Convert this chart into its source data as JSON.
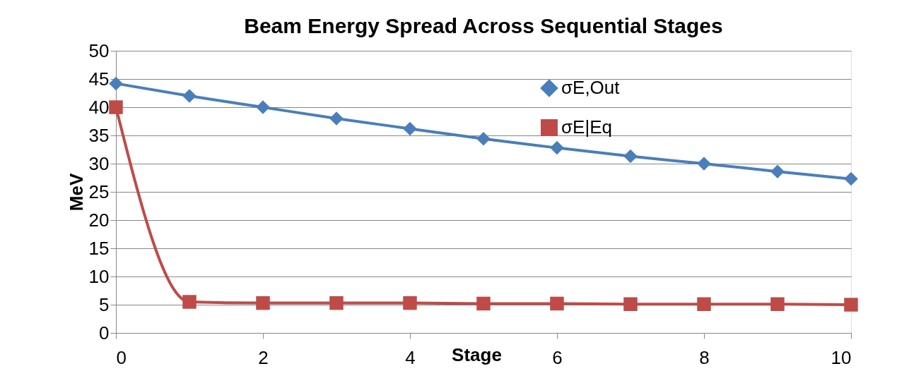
{
  "chart_data": {
    "type": "line",
    "title": "Beam Energy Spread Across Sequential Stages",
    "xlabel": "Stage",
    "ylabel": "MeV",
    "x": [
      0,
      1,
      2,
      3,
      4,
      5,
      6,
      7,
      8,
      9,
      10
    ],
    "series": [
      {
        "name": "σE,Out",
        "color": "#4a7ebb",
        "marker": "diamond",
        "values": [
          44.2,
          42,
          40,
          38,
          36.2,
          34.4,
          32.8,
          31.3,
          30,
          28.6,
          27.3
        ]
      },
      {
        "name": "σE|Eq",
        "color": "#be4b48",
        "marker": "square",
        "values": [
          40,
          5.5,
          5.3,
          5.3,
          5.3,
          5.2,
          5.2,
          5.1,
          5.1,
          5.1,
          5.0
        ]
      }
    ],
    "xlim": [
      0,
      10
    ],
    "xticks": [
      0,
      2,
      4,
      6,
      8,
      10
    ],
    "ylim": [
      0,
      50
    ],
    "yticks": [
      0,
      5,
      10,
      15,
      20,
      25,
      30,
      35,
      40,
      45,
      50
    ],
    "grid": "y",
    "legend": "top right",
    "line_style": "solid"
  }
}
